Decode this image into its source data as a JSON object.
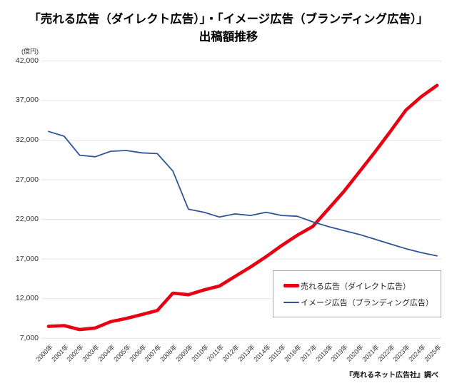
{
  "title": {
    "line1": "「売れる広告（ダイレクト広告）」・「イメージ広告（ブランディング広告）」",
    "line2": "出稿額推移"
  },
  "y_axis": {
    "unit": "(億円)",
    "tick_labels": [
      "7,000",
      "12,000",
      "17,000",
      "22,000",
      "27,000",
      "32,000",
      "37,000",
      "42,000"
    ]
  },
  "x_axis": {
    "labels": [
      "2000年",
      "2001年",
      "2002年",
      "2003年",
      "2004年",
      "2005年",
      "2006年",
      "2007年",
      "2008年",
      "2009年",
      "2010年",
      "2011年",
      "2012年",
      "2013年",
      "2014年",
      "2015年",
      "2016年",
      "2017年",
      "2018年",
      "2019年",
      "2020年",
      "2021年",
      "2022年",
      "2023年",
      "2024年",
      "2025年"
    ]
  },
  "legend": {
    "items": [
      {
        "label": "売れる広告（ダイレクト広告）",
        "color": "#e60012",
        "swatch_thickness": 5
      },
      {
        "label": "イメージ広告（ブランディング広告）",
        "color": "#2f5597",
        "swatch_thickness": 2
      }
    ]
  },
  "source": "『売れるネット広告社』調べ",
  "colors": {
    "red": "#e60012",
    "blue": "#2f5597",
    "grid": "#e3e3e3",
    "text": "#333333",
    "legend_border": "#ababab"
  },
  "chart_data": {
    "type": "line",
    "title": "「売れる広告（ダイレクト広告）」・「イメージ広告（ブランディング広告）」出稿額推移",
    "ylabel": "(億円)",
    "ylim": [
      7000,
      42000
    ],
    "y_ticks": [
      7000,
      12000,
      17000,
      22000,
      27000,
      32000,
      37000,
      42000
    ],
    "grid": true,
    "legend_position": "inside lower-right",
    "categories": [
      "2000年",
      "2001年",
      "2002年",
      "2003年",
      "2004年",
      "2005年",
      "2006年",
      "2007年",
      "2008年",
      "2009年",
      "2010年",
      "2011年",
      "2012年",
      "2013年",
      "2014年",
      "2015年",
      "2016年",
      "2017年",
      "2018年",
      "2019年",
      "2020年",
      "2021年",
      "2022年",
      "2023年",
      "2024年",
      "2025年"
    ],
    "series": [
      {
        "name": "売れる広告（ダイレクト広告）",
        "color": "#e60012",
        "stroke_width": 4.6,
        "values": [
          8500,
          8600,
          8100,
          8300,
          9100,
          9500,
          10000,
          10500,
          12700,
          12500,
          13100,
          13600,
          14800,
          16000,
          17300,
          18700,
          20000,
          21100,
          23300,
          25500,
          28000,
          30500,
          33100,
          35800,
          37500,
          38900
        ]
      },
      {
        "name": "イメージ広告（ブランディング広告）",
        "color": "#2f5597",
        "stroke_width": 1.8,
        "values": [
          33100,
          32500,
          30100,
          29900,
          30600,
          30700,
          30400,
          30300,
          28100,
          23300,
          22900,
          22300,
          22700,
          22500,
          22900,
          22500,
          22400,
          21700,
          21100,
          20600,
          20100,
          19500,
          18900,
          18300,
          17800,
          17400
        ]
      }
    ]
  }
}
